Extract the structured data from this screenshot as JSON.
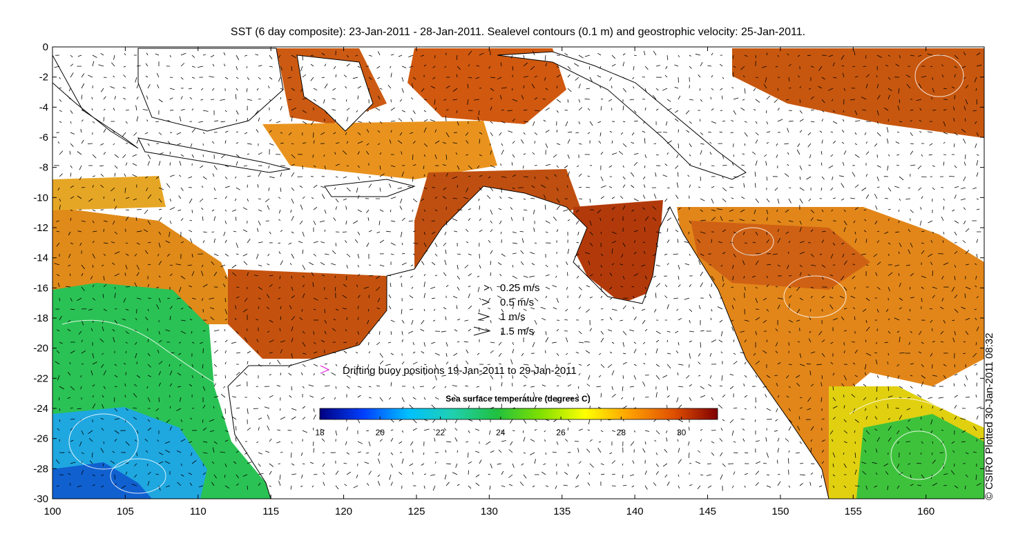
{
  "title": "SST (6 day composite): 23-Jan-2011 - 28-Jan-2011. Sealevel contours (0.1 m) and geostrophic velocity: 25-Jan-2011.",
  "credit": "© CSIRO Plotted 30-Jan-2011 08:32",
  "axes": {
    "x_ticks": [
      "100",
      "105",
      "110",
      "115",
      "120",
      "125",
      "130",
      "135",
      "140",
      "145",
      "150",
      "155",
      "160"
    ],
    "y_ticks": [
      "0",
      "-2",
      "-4",
      "-6",
      "-8",
      "-10",
      "-12",
      "-14",
      "-16",
      "-18",
      "-20",
      "-22",
      "-24",
      "-26",
      "-28",
      "-30"
    ],
    "lon_range": [
      100,
      164
    ],
    "lat_range": [
      -30,
      0
    ]
  },
  "velocity_legend": [
    {
      "label": "0.25 m/s",
      "speed": 0.25
    },
    {
      "label": "0.5 m/s",
      "speed": 0.5
    },
    {
      "label": "1 m/s",
      "speed": 1
    },
    {
      "label": "1.5 m/s",
      "speed": 1.5
    }
  ],
  "buoy_legend": {
    "label": "Drifting buoy positions 19-Jan-2011 to 29-Jan-2011",
    "color": "#e020e0"
  },
  "colorbar": {
    "title": "Sea surface temperature (degrees C)",
    "ticks": [
      "18",
      "20",
      "22",
      "24",
      "26",
      "28",
      "30"
    ],
    "range": [
      18,
      31.2
    ],
    "colors": [
      "#000080",
      "#0040ff",
      "#00c0ff",
      "#20d0b0",
      "#20c040",
      "#80e000",
      "#ffff00",
      "#ffa000",
      "#e05000",
      "#800000"
    ]
  }
}
